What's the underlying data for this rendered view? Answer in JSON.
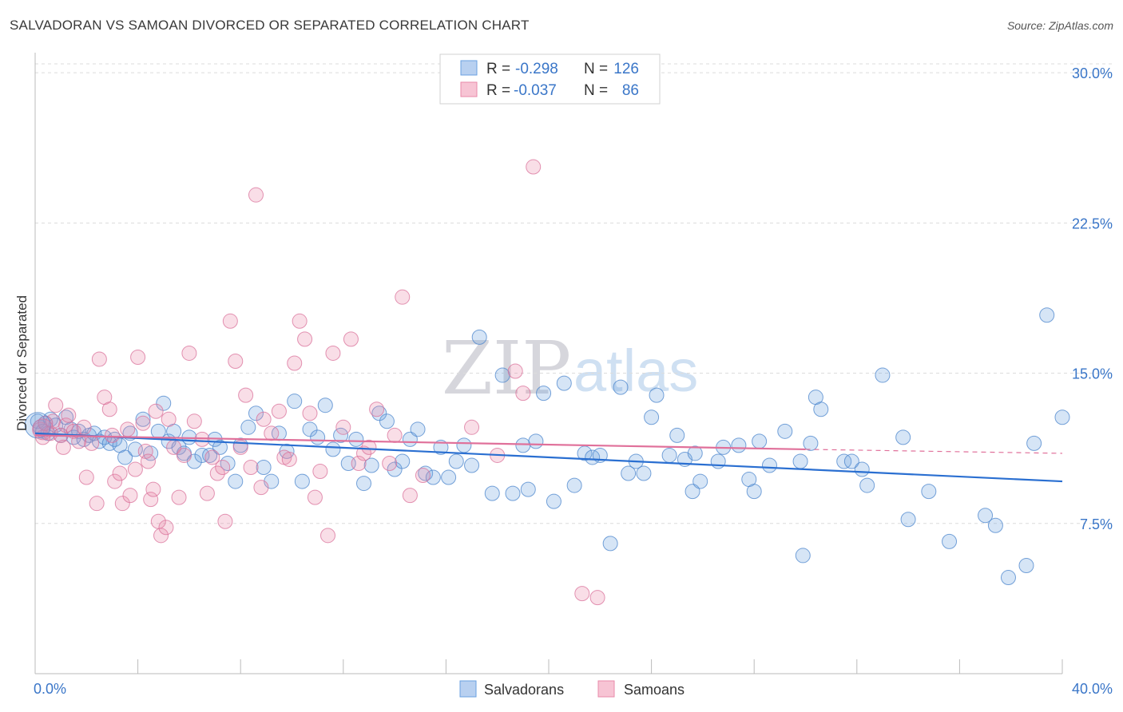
{
  "header": {
    "title": "SALVADORAN VS SAMOAN DIVORCED OR SEPARATED CORRELATION CHART",
    "source": "Source: ZipAtlas.com"
  },
  "watermark": {
    "zip": "ZIP",
    "atlas": "atlas"
  },
  "legend": {
    "r_label": "R =",
    "n_label": "N =",
    "rows": [
      {
        "r": "-0.298",
        "n": "126",
        "color": "#6aa0e0"
      },
      {
        "r": "-0.037",
        "n": "86",
        "color": "#e98aaa"
      }
    ]
  },
  "bottom_legend": [
    "Salvadorans",
    "Samoans"
  ],
  "chart_data": {
    "type": "scatter",
    "title": "SALVADORAN VS SAMOAN DIVORCED OR SEPARATED CORRELATION CHART",
    "xlabel": "",
    "ylabel": "Divorced or Separated",
    "xlim": [
      0,
      40
    ],
    "ylim": [
      0,
      31
    ],
    "x_ticks": [
      "0.0%",
      "40.0%"
    ],
    "y_ticks": [
      {
        "value": 7.5,
        "label": "7.5%"
      },
      {
        "value": 15.0,
        "label": "15.0%"
      },
      {
        "value": 22.5,
        "label": "22.5%"
      },
      {
        "value": 30.0,
        "label": "30.0%"
      }
    ],
    "grid": true,
    "legend_position": "top-center",
    "series": [
      {
        "name": "Salvadorans",
        "color": "#6aa0e0",
        "stroke": "#4a84cc",
        "trend": {
          "x": [
            0,
            40
          ],
          "y": [
            12.0,
            9.6
          ],
          "color": "#2a6fd1"
        },
        "points": [
          [
            0.1,
            12.6
          ],
          [
            0.2,
            12.3
          ],
          [
            0.3,
            12.1
          ],
          [
            0.4,
            12.5
          ],
          [
            0.5,
            12.0
          ],
          [
            0.6,
            12.7
          ],
          [
            0.8,
            12.4
          ],
          [
            1.0,
            11.9
          ],
          [
            1.2,
            12.8
          ],
          [
            1.4,
            12.2
          ],
          [
            1.5,
            11.8
          ],
          [
            1.7,
            12.1
          ],
          [
            1.9,
            11.7
          ],
          [
            2.1,
            11.9
          ],
          [
            2.3,
            12.0
          ],
          [
            2.5,
            11.6
          ],
          [
            2.7,
            11.8
          ],
          [
            2.9,
            11.5
          ],
          [
            3.1,
            11.7
          ],
          [
            3.3,
            11.4
          ],
          [
            3.5,
            10.8
          ],
          [
            3.7,
            12.0
          ],
          [
            3.9,
            11.2
          ],
          [
            4.2,
            12.7
          ],
          [
            4.5,
            11.0
          ],
          [
            4.8,
            12.1
          ],
          [
            5.0,
            13.5
          ],
          [
            5.2,
            11.6
          ],
          [
            5.4,
            12.1
          ],
          [
            5.6,
            11.3
          ],
          [
            5.8,
            11.0
          ],
          [
            6.0,
            11.8
          ],
          [
            6.2,
            10.6
          ],
          [
            6.5,
            10.9
          ],
          [
            6.8,
            10.9
          ],
          [
            7.0,
            11.7
          ],
          [
            7.2,
            11.3
          ],
          [
            7.5,
            10.5
          ],
          [
            7.8,
            9.6
          ],
          [
            8.0,
            11.4
          ],
          [
            8.3,
            12.3
          ],
          [
            8.6,
            13.0
          ],
          [
            8.9,
            10.3
          ],
          [
            9.2,
            9.6
          ],
          [
            9.5,
            12.0
          ],
          [
            9.8,
            11.1
          ],
          [
            10.1,
            13.6
          ],
          [
            10.4,
            9.6
          ],
          [
            10.7,
            12.2
          ],
          [
            11.0,
            11.8
          ],
          [
            11.3,
            13.4
          ],
          [
            11.6,
            11.2
          ],
          [
            11.9,
            11.9
          ],
          [
            12.2,
            10.5
          ],
          [
            12.5,
            11.7
          ],
          [
            12.8,
            9.5
          ],
          [
            13.1,
            10.4
          ],
          [
            13.4,
            13.0
          ],
          [
            13.7,
            12.6
          ],
          [
            14.0,
            10.2
          ],
          [
            14.3,
            10.6
          ],
          [
            14.6,
            11.7
          ],
          [
            14.9,
            12.2
          ],
          [
            15.2,
            10.0
          ],
          [
            15.5,
            9.8
          ],
          [
            15.8,
            11.3
          ],
          [
            16.1,
            9.8
          ],
          [
            16.4,
            10.6
          ],
          [
            16.7,
            11.4
          ],
          [
            17.0,
            10.4
          ],
          [
            17.3,
            16.8
          ],
          [
            17.8,
            9.0
          ],
          [
            18.2,
            14.9
          ],
          [
            18.6,
            9.0
          ],
          [
            19.0,
            11.4
          ],
          [
            19.2,
            9.2
          ],
          [
            19.5,
            11.6
          ],
          [
            19.8,
            14.0
          ],
          [
            20.2,
            8.6
          ],
          [
            20.6,
            14.5
          ],
          [
            21.0,
            9.4
          ],
          [
            21.4,
            11.0
          ],
          [
            21.7,
            10.8
          ],
          [
            22.0,
            10.9
          ],
          [
            22.4,
            6.5
          ],
          [
            22.8,
            14.3
          ],
          [
            23.1,
            10.0
          ],
          [
            23.4,
            10.6
          ],
          [
            23.7,
            10.0
          ],
          [
            24.0,
            12.8
          ],
          [
            24.2,
            13.9
          ],
          [
            24.7,
            10.9
          ],
          [
            25.0,
            11.9
          ],
          [
            25.3,
            10.7
          ],
          [
            25.6,
            9.1
          ],
          [
            25.7,
            11.0
          ],
          [
            25.9,
            9.6
          ],
          [
            26.6,
            10.6
          ],
          [
            26.8,
            11.3
          ],
          [
            27.4,
            11.4
          ],
          [
            27.8,
            9.7
          ],
          [
            28.0,
            9.1
          ],
          [
            28.2,
            11.6
          ],
          [
            28.6,
            10.4
          ],
          [
            29.2,
            12.1
          ],
          [
            29.8,
            10.6
          ],
          [
            29.9,
            5.9
          ],
          [
            30.2,
            11.5
          ],
          [
            30.4,
            13.8
          ],
          [
            30.6,
            13.2
          ],
          [
            31.5,
            10.6
          ],
          [
            31.8,
            10.6
          ],
          [
            32.2,
            10.2
          ],
          [
            32.4,
            9.4
          ],
          [
            33.0,
            14.9
          ],
          [
            33.8,
            11.8
          ],
          [
            34.0,
            7.7
          ],
          [
            34.8,
            9.1
          ],
          [
            35.6,
            6.6
          ],
          [
            37.0,
            7.9
          ],
          [
            37.4,
            7.4
          ],
          [
            37.9,
            4.8
          ],
          [
            38.6,
            5.4
          ],
          [
            38.9,
            11.5
          ],
          [
            39.4,
            17.9
          ],
          [
            40.0,
            12.8
          ]
        ]
      },
      {
        "name": "Samoans",
        "color": "#e98aaa",
        "stroke": "#d9709a",
        "trend": {
          "x": [
            0,
            30
          ],
          "y": [
            11.9,
            11.2
          ],
          "dashed_to": [
            40,
            11.0
          ],
          "color": "#e0709a"
        },
        "points": [
          [
            0.2,
            12.2
          ],
          [
            0.3,
            11.8
          ],
          [
            0.4,
            12.5
          ],
          [
            0.6,
            12.0
          ],
          [
            0.7,
            12.6
          ],
          [
            0.8,
            13.4
          ],
          [
            1.0,
            11.9
          ],
          [
            1.1,
            11.3
          ],
          [
            1.2,
            12.4
          ],
          [
            1.3,
            12.9
          ],
          [
            1.5,
            12.1
          ],
          [
            1.7,
            11.6
          ],
          [
            1.9,
            12.3
          ],
          [
            2.0,
            9.8
          ],
          [
            2.2,
            11.5
          ],
          [
            2.4,
            8.5
          ],
          [
            2.5,
            15.7
          ],
          [
            2.7,
            13.8
          ],
          [
            2.9,
            13.2
          ],
          [
            3.0,
            11.9
          ],
          [
            3.1,
            9.6
          ],
          [
            3.3,
            10.0
          ],
          [
            3.4,
            8.5
          ],
          [
            3.6,
            12.2
          ],
          [
            3.7,
            8.9
          ],
          [
            3.9,
            10.2
          ],
          [
            4.0,
            15.8
          ],
          [
            4.2,
            12.5
          ],
          [
            4.3,
            11.1
          ],
          [
            4.4,
            10.6
          ],
          [
            4.5,
            8.7
          ],
          [
            4.6,
            9.2
          ],
          [
            4.7,
            13.1
          ],
          [
            4.8,
            7.6
          ],
          [
            4.9,
            6.9
          ],
          [
            5.1,
            7.3
          ],
          [
            5.2,
            12.7
          ],
          [
            5.4,
            11.3
          ],
          [
            5.6,
            8.8
          ],
          [
            5.8,
            10.9
          ],
          [
            6.0,
            16.0
          ],
          [
            6.2,
            12.6
          ],
          [
            6.5,
            11.7
          ],
          [
            6.7,
            9.0
          ],
          [
            6.9,
            10.8
          ],
          [
            7.1,
            10.0
          ],
          [
            7.3,
            10.3
          ],
          [
            7.4,
            7.6
          ],
          [
            7.6,
            17.6
          ],
          [
            7.8,
            15.6
          ],
          [
            8.0,
            11.3
          ],
          [
            8.2,
            13.9
          ],
          [
            8.4,
            10.3
          ],
          [
            8.6,
            23.9
          ],
          [
            8.8,
            9.3
          ],
          [
            8.9,
            12.7
          ],
          [
            9.2,
            12.0
          ],
          [
            9.5,
            13.1
          ],
          [
            9.7,
            10.8
          ],
          [
            9.9,
            10.7
          ],
          [
            10.1,
            15.5
          ],
          [
            10.3,
            17.6
          ],
          [
            10.5,
            16.7
          ],
          [
            10.7,
            13.0
          ],
          [
            10.9,
            8.8
          ],
          [
            11.1,
            10.1
          ],
          [
            11.4,
            6.9
          ],
          [
            11.6,
            16.0
          ],
          [
            12.0,
            12.3
          ],
          [
            12.3,
            16.7
          ],
          [
            12.6,
            10.5
          ],
          [
            12.8,
            11.0
          ],
          [
            13.0,
            11.3
          ],
          [
            13.3,
            13.2
          ],
          [
            13.8,
            10.5
          ],
          [
            14.0,
            11.9
          ],
          [
            14.3,
            18.8
          ],
          [
            14.6,
            8.9
          ],
          [
            15.1,
            9.9
          ],
          [
            17.0,
            12.3
          ],
          [
            18.0,
            10.9
          ],
          [
            18.7,
            15.1
          ],
          [
            19.0,
            14.0
          ],
          [
            19.4,
            25.3
          ],
          [
            21.3,
            4.0
          ],
          [
            21.9,
            3.8
          ]
        ]
      }
    ]
  }
}
